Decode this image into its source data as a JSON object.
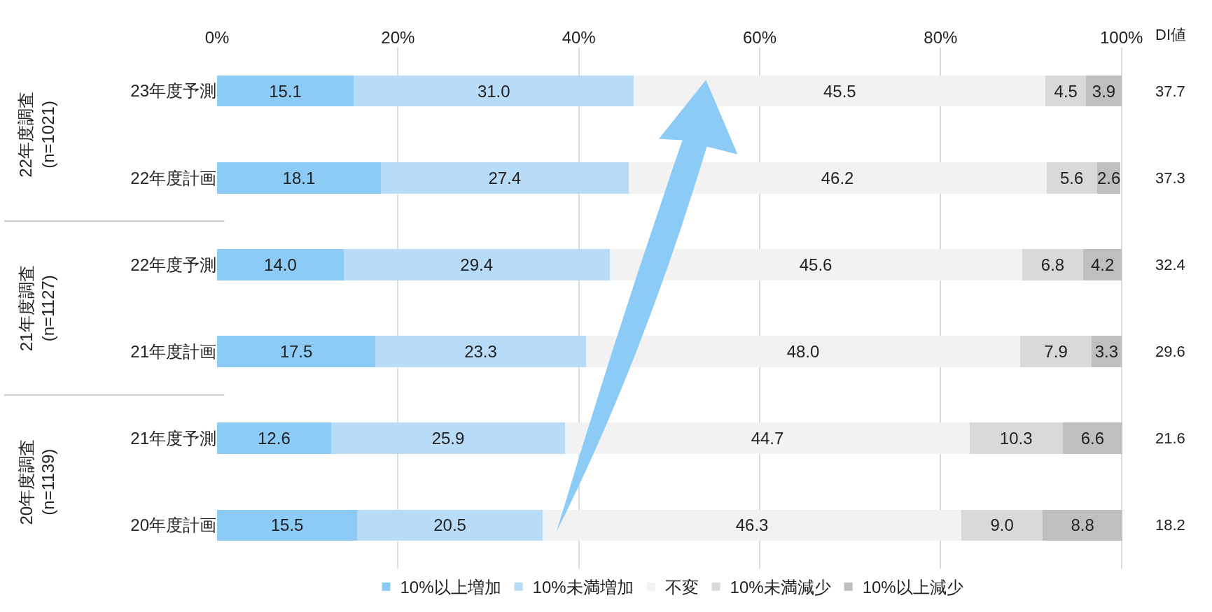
{
  "chart_data": {
    "type": "bar",
    "orientation": "horizontal",
    "stacked": true,
    "grid": "x",
    "legend": "bottom",
    "categories": [
      "23年度予測",
      "22年度計画",
      "22年度予測",
      "21年度計画",
      "21年度予測",
      "20年度計画"
    ],
    "series": [
      {
        "name": "10%以上増加",
        "color": "#8ccbf5",
        "values": [
          15.1,
          18.1,
          14.0,
          17.5,
          12.6,
          15.5
        ],
        "value_labels": [
          "15.1",
          "18.1",
          "14.0",
          "17.5",
          "12.6",
          "15.5"
        ]
      },
      {
        "name": "10%未満増加",
        "color": "#b8dcf8",
        "values": [
          31.0,
          27.4,
          29.4,
          23.3,
          25.9,
          20.5
        ],
        "value_labels": [
          "31.0",
          "27.4",
          "29.4",
          "23.3",
          "25.9",
          "20.5"
        ]
      },
      {
        "name": "不変",
        "color": "#f2f2f2",
        "values": [
          45.5,
          46.2,
          45.6,
          48.0,
          44.7,
          46.3
        ],
        "value_labels": [
          "45.5",
          "46.2",
          "45.6",
          "48.0",
          "44.7",
          "46.3"
        ]
      },
      {
        "name": "10%未満減少",
        "color": "#d9d9d9",
        "values": [
          4.5,
          5.6,
          6.8,
          7.9,
          10.3,
          9.0
        ],
        "value_labels": [
          "4.5",
          "5.6",
          "6.8",
          "7.9",
          "10.3",
          "9.0"
        ]
      },
      {
        "name": "10%以上減少",
        "color": "#bfbfbf",
        "values": [
          3.9,
          2.6,
          4.2,
          3.3,
          6.6,
          8.8
        ],
        "value_labels": [
          "3.9",
          "2.6",
          "4.2",
          "3.3",
          "6.6",
          "8.8"
        ]
      }
    ],
    "xlim": [
      0,
      100.1
    ],
    "xticks": [
      {
        "value": 0,
        "label": "0%"
      },
      {
        "value": 20,
        "label": "20%"
      },
      {
        "value": 40,
        "label": "40%"
      },
      {
        "value": 60,
        "label": "60%"
      },
      {
        "value": 80,
        "label": "80%"
      },
      {
        "value": 100,
        "label": "100%"
      }
    ],
    "annotations": [
      "DI値",
      "37.7",
      "37.3",
      "32.4",
      "29.6",
      "21.6",
      "18.2",
      "22年度調査\n(n=1021)",
      "21年度調査\n(n=1127)",
      "20年度調査\n(n=1139)"
    ]
  }
}
